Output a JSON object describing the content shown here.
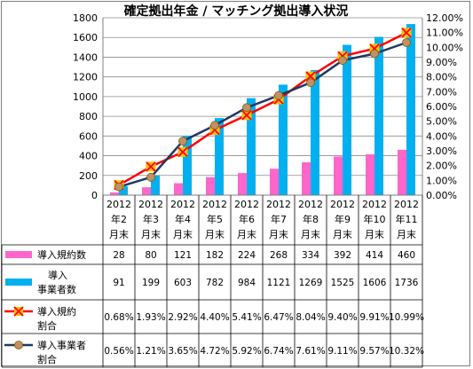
{
  "chart_data": {
    "type": "bar",
    "title": "確定拠出年金 / マッチング拠出導入状況",
    "categories": [
      [
        "2012",
        "年2",
        "月末"
      ],
      [
        "2012",
        "年3",
        "月末"
      ],
      [
        "2012",
        "年4",
        "月末"
      ],
      [
        "2012",
        "年5",
        "月末"
      ],
      [
        "2012",
        "年6",
        "月末"
      ],
      [
        "2012",
        "年7",
        "月末"
      ],
      [
        "2012",
        "年8",
        "月末"
      ],
      [
        "2012",
        "年9",
        "月末"
      ],
      [
        "2012",
        "年10",
        "月末"
      ],
      [
        "2012",
        "年11",
        "月末"
      ]
    ],
    "ylim_left": [
      0,
      1800
    ],
    "yticks_left": [
      "0",
      "200",
      "400",
      "600",
      "800",
      "1000",
      "1200",
      "1400",
      "1600",
      "1800"
    ],
    "ylim_right": [
      0,
      12
    ],
    "yticks_right": [
      "0.00%",
      "1.00%",
      "2.00%",
      "3.00%",
      "4.00%",
      "5.00%",
      "6.00%",
      "7.00%",
      "8.00%",
      "9.00%",
      "10.00%",
      "11.00%",
      "12.00%"
    ],
    "grid": true,
    "legend": "data-table-left",
    "series": [
      {
        "name": "導入規約数",
        "type": "bar",
        "axis": "left",
        "color": "#ff66cc",
        "values": [
          28,
          80,
          121,
          182,
          224,
          268,
          334,
          392,
          414,
          460
        ],
        "labels": [
          "28",
          "80",
          "121",
          "182",
          "224",
          "268",
          "334",
          "392",
          "414",
          "460"
        ]
      },
      {
        "name": "導入 事業者数",
        "name_lines": [
          "導入",
          "事業者数"
        ],
        "type": "bar",
        "axis": "left",
        "color": "#00b0f0",
        "values": [
          91,
          199,
          603,
          782,
          984,
          1121,
          1269,
          1525,
          1606,
          1736
        ],
        "labels": [
          "91",
          "199",
          "603",
          "782",
          "984",
          "1121",
          "1269",
          "1525",
          "1606",
          "1736"
        ]
      },
      {
        "name": "導入規約 割合",
        "name_lines": [
          "導入規約",
          "割合"
        ],
        "type": "line",
        "axis": "right",
        "color": "#ff0000",
        "marker": "x-box",
        "marker_color": "#ffc000",
        "values": [
          0.68,
          1.93,
          2.92,
          4.4,
          5.41,
          6.47,
          8.04,
          9.4,
          9.91,
          10.99
        ],
        "labels": [
          "0.68%",
          "1.93%",
          "2.92%",
          "4.40%",
          "5.41%",
          "6.47%",
          "8.04%",
          "9.40%",
          "9.91%",
          "10.99%"
        ]
      },
      {
        "name": "導入事業者 割合",
        "name_lines": [
          "導入事業者",
          "割合"
        ],
        "type": "line",
        "axis": "right",
        "color": "#1f3864",
        "marker": "circle",
        "marker_color": "#c0906a",
        "values": [
          0.56,
          1.21,
          3.65,
          4.72,
          5.92,
          6.74,
          7.61,
          9.11,
          9.57,
          10.32
        ],
        "labels": [
          "0.56%",
          "1.21%",
          "3.65%",
          "4.72%",
          "5.92%",
          "6.74%",
          "7.61%",
          "9.11%",
          "9.57%",
          "10.32%"
        ]
      }
    ]
  }
}
